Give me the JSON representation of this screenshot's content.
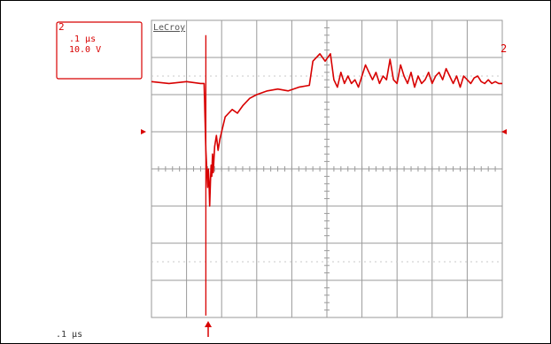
{
  "chart_data": {
    "type": "line",
    "brand": "LeCroy",
    "channel": "2",
    "timebase": ".1 µs",
    "volts_per_div": "10.0 V",
    "footer_timebase": ".1 µs",
    "grid": true,
    "divisions": {
      "x": 10,
      "y": 8
    },
    "trace_color": "#d80000",
    "grid_color": "#9a9a9a",
    "xlim": [
      0,
      10
    ],
    "ylim": [
      -4,
      4
    ],
    "series": [
      {
        "x": [
          0.0,
          0.5,
          1.0,
          1.4,
          1.5,
          1.55,
          1.6,
          1.62,
          1.64,
          1.66,
          1.68,
          1.7,
          1.72,
          1.74,
          1.76,
          1.8,
          1.85,
          1.9,
          1.95,
          2.0,
          2.1,
          2.2,
          2.3,
          2.45,
          2.6,
          2.8,
          3.0,
          3.3,
          3.6,
          3.9,
          4.2,
          4.5,
          4.6,
          4.8,
          4.95,
          5.1,
          5.2,
          5.3,
          5.4,
          5.5,
          5.6,
          5.7,
          5.8,
          5.9,
          6.0,
          6.1,
          6.2,
          6.3,
          6.4,
          6.5,
          6.6,
          6.7,
          6.8,
          6.9,
          7.0,
          7.1,
          7.2,
          7.3,
          7.4,
          7.5,
          7.6,
          7.7,
          7.8,
          7.9,
          8.0,
          8.1,
          8.2,
          8.3,
          8.4,
          8.5,
          8.6,
          8.7,
          8.8,
          8.9,
          9.0,
          9.1,
          9.2,
          9.3,
          9.4,
          9.5,
          9.6,
          9.7,
          9.8,
          9.9,
          10.0
        ],
        "y": [
          2.35,
          2.3,
          2.35,
          2.3,
          2.3,
          0.5,
          -0.5,
          0.0,
          -0.3,
          -1.0,
          -0.4,
          0.1,
          -0.2,
          0.4,
          -0.1,
          0.6,
          0.9,
          0.5,
          0.8,
          1.0,
          1.4,
          1.5,
          1.6,
          1.5,
          1.7,
          1.9,
          2.0,
          2.1,
          2.15,
          2.1,
          2.2,
          2.25,
          2.9,
          3.1,
          2.9,
          3.1,
          2.4,
          2.2,
          2.6,
          2.3,
          2.5,
          2.3,
          2.4,
          2.2,
          2.5,
          2.8,
          2.6,
          2.4,
          2.6,
          2.3,
          2.5,
          2.4,
          2.95,
          2.4,
          2.3,
          2.8,
          2.5,
          2.3,
          2.6,
          2.2,
          2.5,
          2.3,
          2.4,
          2.6,
          2.3,
          2.5,
          2.6,
          2.4,
          2.7,
          2.5,
          2.3,
          2.5,
          2.2,
          2.5,
          2.4,
          2.3,
          2.45,
          2.5,
          2.35,
          2.3,
          2.4,
          2.3,
          2.35,
          2.3,
          2.3
        ]
      }
    ],
    "spike": {
      "x": 1.55,
      "y_top": 3.6,
      "y_bottom": -3.95
    }
  }
}
